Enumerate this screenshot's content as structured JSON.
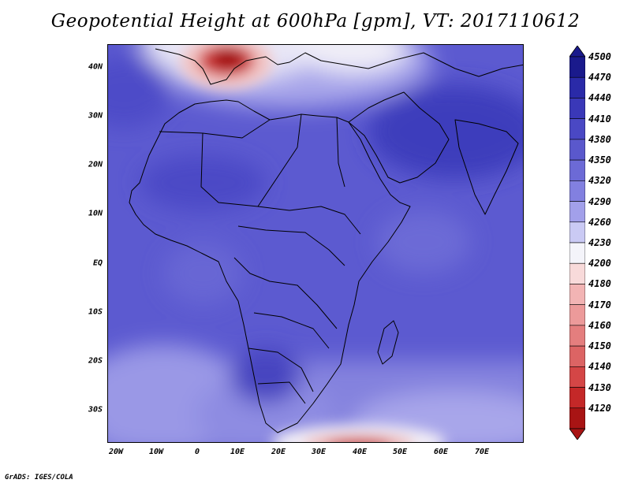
{
  "title": "Geopotential Height at 600hPa [gpm], VT: 2017110612",
  "credit": "GrADS: IGES/COLA",
  "latitude_labels": [
    "40N",
    "30N",
    "20N",
    "10N",
    "EQ",
    "10S",
    "20S",
    "30S"
  ],
  "longitude_labels": [
    "20W",
    "10W",
    "0",
    "10E",
    "20E",
    "30E",
    "40E",
    "50E",
    "60E",
    "70E"
  ],
  "colorbar": {
    "levels": [
      "4500",
      "4470",
      "4440",
      "4410",
      "4380",
      "4350",
      "4320",
      "4290",
      "4260",
      "4230",
      "4200",
      "4180",
      "4170",
      "4160",
      "4150",
      "4140",
      "4130",
      "4120"
    ],
    "colors": [
      "#1a1a8c",
      "#2a2aa8",
      "#3a38b8",
      "#4a48c4",
      "#5a58cc",
      "#6c6ad6",
      "#8280e0",
      "#a2a0ea",
      "#cacaf4",
      "#f4f4fa",
      "#f8dada",
      "#f2b4b4",
      "#ec9a9a",
      "#e47e7e",
      "#dc6464",
      "#d44646",
      "#c42828",
      "#a81414"
    ]
  },
  "map": {
    "domain_lon": [
      -23,
      80
    ],
    "domain_lat": [
      -37,
      45
    ],
    "field_colors": {
      "base": "#5c5ad0",
      "deep": "#3c3ab8",
      "mid": "#6e6cd8",
      "light": "#8c8ae2",
      "pale": "#b4b2ee",
      "white": "#f6f4fa",
      "pink": "#f4c8c8",
      "red": "#c62a2a",
      "darkred": "#a01010"
    }
  }
}
